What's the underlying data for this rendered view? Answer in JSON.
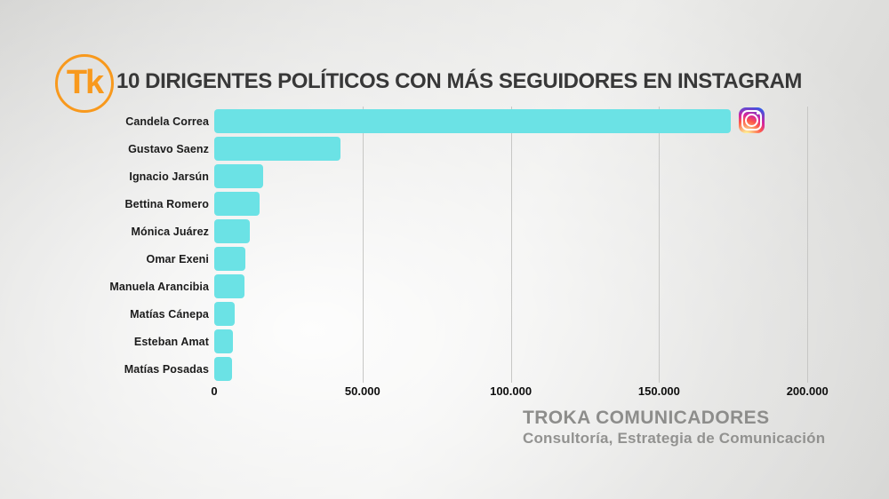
{
  "header": {
    "logo_text": "Tk",
    "title": "10 DIRIGENTES POLÍTICOS CON MÁS SEGUIDORES EN INSTAGRAM"
  },
  "chart_data": {
    "type": "bar",
    "orientation": "horizontal",
    "title": "10 DIRIGENTES POLÍTICOS CON MÁS SEGUIDORES EN INSTAGRAM",
    "categories": [
      "Candela Correa",
      "Gustavo Saenz",
      "Ignacio Jarsún",
      "Bettina Romero",
      "Mónica Juárez",
      "Omar Exeni",
      "Manuela Arancibia",
      "Matías Cánepa",
      "Esteban Amat",
      "Matías Posadas"
    ],
    "values": [
      174000,
      42500,
      16500,
      15300,
      11900,
      10600,
      10300,
      7000,
      6200,
      5900
    ],
    "xlabel": "",
    "ylabel": "",
    "xlim": [
      0,
      200000
    ],
    "x_ticks": [
      "0",
      "50.000",
      "100.000",
      "150.000",
      "200.000"
    ],
    "x_tick_values": [
      0,
      50000,
      100000,
      150000,
      200000
    ],
    "grid": "vertical-only",
    "legend": "none",
    "bar_color": "#6BE2E5",
    "leader_annotation_icon": "instagram-icon"
  },
  "footer": {
    "company": "TROKA COMUNICADORES",
    "tagline": "Consultoría, Estrategia de Comunicación"
  },
  "colors": {
    "accent_orange": "#F8991D",
    "bar_cyan": "#6BE2E5",
    "title_dark": "#383838",
    "footer_gray": "#8D8D8B",
    "gridline_gray": "#C7C7C5"
  }
}
